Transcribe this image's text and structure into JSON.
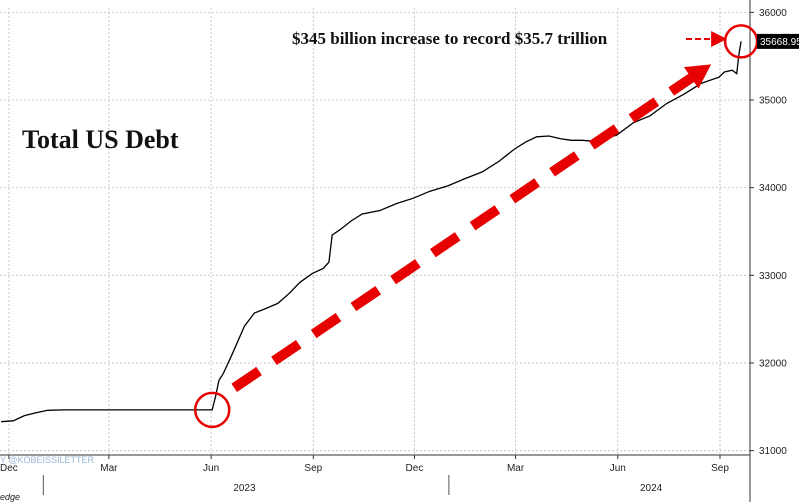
{
  "chart_data": {
    "type": "line",
    "title": "Total US Debt",
    "annotation": "$345 billion increase to record $35.7 trillion",
    "last_value_label": "35668.95",
    "watermark": "Y @KOBEISSILETTER",
    "source": "edge",
    "y_ticks": [
      31000,
      32000,
      33000,
      34000,
      35000,
      36000
    ],
    "ylim": [
      30950,
      36050
    ],
    "x_month_ticks": [
      {
        "label": "Dec",
        "date": "2022-12-01"
      },
      {
        "label": "Mar",
        "date": "2023-03-01"
      },
      {
        "label": "Jun",
        "date": "2023-06-01"
      },
      {
        "label": "Sep",
        "date": "2023-09-01"
      },
      {
        "label": "Dec",
        "date": "2023-12-01"
      },
      {
        "label": "Mar",
        "date": "2024-03-01"
      },
      {
        "label": "Jun",
        "date": "2024-06-01"
      },
      {
        "label": "Sep",
        "date": "2024-09-01"
      }
    ],
    "x_year_labels": [
      {
        "label": "2023",
        "date": "2023-07-01"
      },
      {
        "label": "2024",
        "date": "2024-07-01"
      }
    ],
    "xlim": [
      "2022-11-23",
      "2024-09-28"
    ],
    "grid": true,
    "series": [
      {
        "color": "#000000",
        "points": [
          [
            "2022-11-24",
            31330
          ],
          [
            "2022-12-05",
            31340
          ],
          [
            "2022-12-15",
            31400
          ],
          [
            "2022-12-25",
            31430
          ],
          [
            "2023-01-05",
            31460
          ],
          [
            "2023-01-19",
            31465
          ],
          [
            "2023-03-01",
            31465
          ],
          [
            "2023-05-01",
            31465
          ],
          [
            "2023-06-02",
            31465
          ],
          [
            "2023-06-05",
            31620
          ],
          [
            "2023-06-08",
            31800
          ],
          [
            "2023-06-12",
            31880
          ],
          [
            "2023-06-20",
            32100
          ],
          [
            "2023-07-01",
            32420
          ],
          [
            "2023-07-10",
            32570
          ],
          [
            "2023-07-20",
            32620
          ],
          [
            "2023-07-31",
            32680
          ],
          [
            "2023-08-10",
            32790
          ],
          [
            "2023-08-20",
            32920
          ],
          [
            "2023-08-31",
            33020
          ],
          [
            "2023-09-10",
            33080
          ],
          [
            "2023-09-15",
            33150
          ],
          [
            "2023-09-18",
            33460
          ],
          [
            "2023-09-25",
            33520
          ],
          [
            "2023-10-05",
            33620
          ],
          [
            "2023-10-15",
            33700
          ],
          [
            "2023-10-31",
            33740
          ],
          [
            "2023-11-15",
            33820
          ],
          [
            "2023-11-30",
            33880
          ],
          [
            "2023-12-15",
            33960
          ],
          [
            "2023-12-31",
            34020
          ],
          [
            "2024-01-15",
            34100
          ],
          [
            "2024-01-31",
            34180
          ],
          [
            "2024-02-15",
            34300
          ],
          [
            "2024-02-29",
            34440
          ],
          [
            "2024-03-10",
            34520
          ],
          [
            "2024-03-20",
            34580
          ],
          [
            "2024-03-31",
            34590
          ],
          [
            "2024-04-10",
            34560
          ],
          [
            "2024-04-20",
            34540
          ],
          [
            "2024-04-30",
            34540
          ],
          [
            "2024-05-10",
            34530
          ],
          [
            "2024-05-20",
            34560
          ],
          [
            "2024-05-31",
            34600
          ],
          [
            "2024-06-15",
            34740
          ],
          [
            "2024-06-30",
            34820
          ],
          [
            "2024-07-15",
            34960
          ],
          [
            "2024-07-31",
            35070
          ],
          [
            "2024-08-15",
            35190
          ],
          [
            "2024-08-31",
            35260
          ],
          [
            "2024-09-05",
            35320
          ],
          [
            "2024-09-12",
            35340
          ],
          [
            "2024-09-16",
            35300
          ],
          [
            "2024-09-18",
            35520
          ],
          [
            "2024-09-20",
            35668.95
          ]
        ]
      }
    ],
    "colors": {
      "line": "#000000",
      "accent": "#e60000",
      "last_label_bg": "#000000",
      "grid": "#c8c8c8"
    }
  }
}
